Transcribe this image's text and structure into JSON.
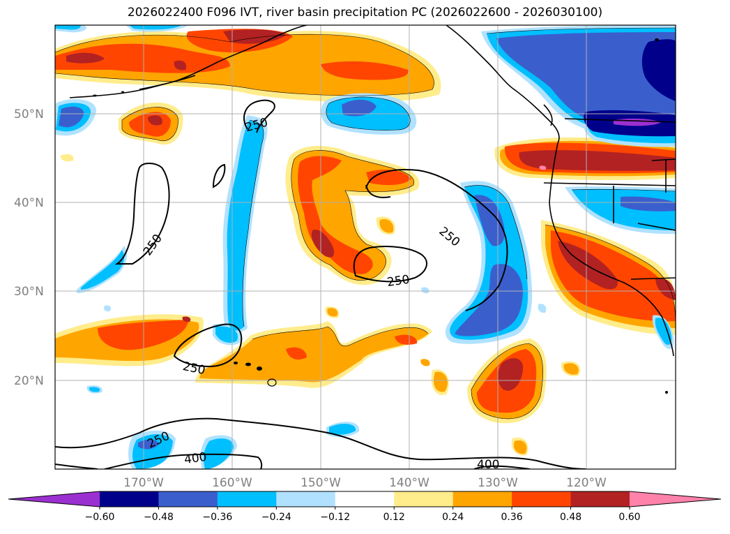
{
  "title": "2026022400 F096 IVT, river basin precipitation PC (2026022600 - 2026030100)",
  "latitude_labels": [
    "50°N",
    "40°N",
    "30°N",
    "20°N"
  ],
  "longitude_labels": [
    "170°W",
    "160°W",
    "150°W",
    "140°W",
    "130°W",
    "120°W"
  ],
  "contour_labels": [
    "250",
    "250",
    "250",
    "250",
    "250",
    "250",
    "400",
    "400"
  ],
  "colorbar": {
    "ticks": [
      "−0.60",
      "−0.48",
      "−0.36",
      "−0.24",
      "−0.12",
      "0.12",
      "0.24",
      "0.36",
      "0.48",
      "0.60"
    ],
    "colors": [
      "#9b30d0",
      "#00008b",
      "#3a5fcd",
      "#00bfff",
      "#b0e2ff",
      "#ffffff",
      "#ffec8b",
      "#ffa500",
      "#ff4500",
      "#b22222",
      "#ff82ab"
    ]
  },
  "colors": {
    "grid": "#b0b0b0",
    "coast": "#000000",
    "contour": "#000000"
  }
}
